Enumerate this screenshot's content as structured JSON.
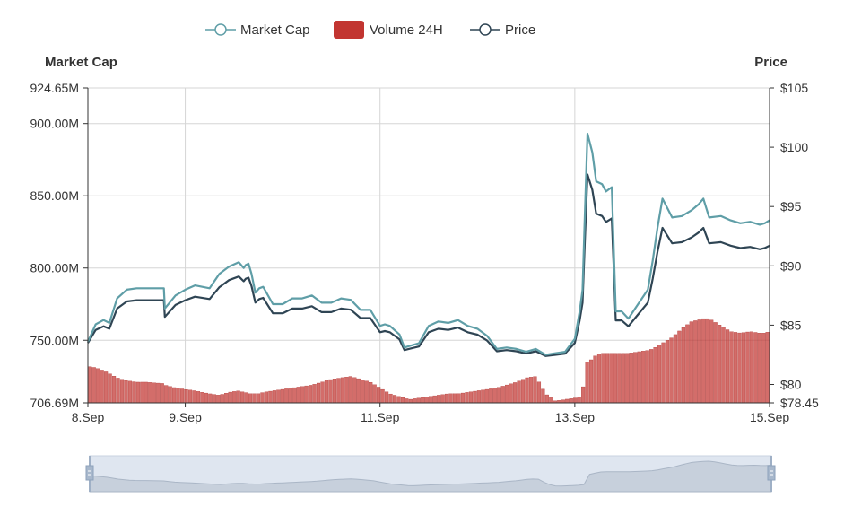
{
  "chart_data": {
    "type": "line",
    "legend": {
      "position": "top-center",
      "items": [
        {
          "label": "Market Cap",
          "icon": "line-circle-icon",
          "color": "#5f9ea7"
        },
        {
          "label": "Volume 24H",
          "icon": "filled-rect-icon",
          "color": "#c23531"
        },
        {
          "label": "Price",
          "icon": "line-circle-icon",
          "color": "#2f4554"
        }
      ]
    },
    "y_left": {
      "name": "Market Cap",
      "min": 706.69,
      "max": 924.65,
      "unit": "M",
      "ticks": [
        "706.69M",
        "750.00M",
        "800.00M",
        "850.00M",
        "900.00M",
        "924.65M"
      ],
      "tick_values": [
        706.69,
        750,
        800,
        850,
        900,
        924.65
      ]
    },
    "y_right": {
      "name": "Price",
      "min": 78.45,
      "max": 105,
      "ticks": [
        "$78.45",
        "$80",
        "$85",
        "$90",
        "$95",
        "$100",
        "$105"
      ],
      "tick_values": [
        78.45,
        80,
        85,
        90,
        95,
        100,
        105
      ]
    },
    "x_axis": {
      "ticks": [
        "8.Sep",
        "9.Sep",
        "11.Sep",
        "13.Sep",
        "15.Sep"
      ],
      "tick_days": [
        0,
        1,
        3,
        5,
        7
      ]
    },
    "grid": true,
    "x_days": [
      0,
      0.08,
      0.16,
      0.22,
      0.3,
      0.4,
      0.5,
      0.6,
      0.78,
      0.79,
      0.9,
      1,
      1.1,
      1.25,
      1.35,
      1.45,
      1.55,
      1.6,
      1.62,
      1.65,
      1.68,
      1.72,
      1.76,
      1.8,
      1.9,
      2,
      2.1,
      2.2,
      2.3,
      2.4,
      2.5,
      2.6,
      2.7,
      2.8,
      2.9,
      3,
      3.05,
      3.1,
      3.2,
      3.25,
      3.3,
      3.4,
      3.5,
      3.6,
      3.7,
      3.8,
      3.9,
      4,
      4.1,
      4.2,
      4.3,
      4.4,
      4.5,
      4.6,
      4.7,
      4.8,
      4.9,
      5,
      5.05,
      5.08,
      5.1,
      5.13,
      5.18,
      5.22,
      5.28,
      5.32,
      5.38,
      5.42,
      5.48,
      5.55,
      5.65,
      5.75,
      5.8,
      5.85,
      5.9,
      6,
      6.1,
      6.2,
      6.27,
      6.32,
      6.38,
      6.5,
      6.6,
      6.7,
      6.8,
      6.9,
      6.95,
      7
    ],
    "series": [
      {
        "name": "Market Cap",
        "color": "#5f9ea7",
        "values": [
          749,
          761,
          764,
          762,
          779,
          785,
          786,
          786,
          786,
          772,
          781,
          785,
          788,
          786,
          796,
          801,
          804,
          800,
          802,
          803,
          796,
          783,
          786,
          787,
          775,
          775,
          779,
          779,
          781,
          776,
          776,
          779,
          778,
          771,
          771,
          760,
          761,
          760,
          754,
          745,
          746,
          748,
          760,
          763,
          762,
          764,
          760,
          758,
          753,
          744,
          745,
          744,
          742,
          744,
          740,
          741,
          742,
          751,
          770,
          785,
          830,
          893,
          880,
          860,
          858,
          853,
          856,
          770,
          770,
          765,
          775,
          785,
          805,
          828,
          848,
          835,
          836,
          840,
          844,
          848,
          835,
          836,
          833,
          831,
          832,
          830,
          831,
          833
        ]
      },
      {
        "name": "Price",
        "color": "#2f4554",
        "values": [
          83.5,
          84.6,
          84.9,
          84.7,
          86.4,
          87.0,
          87.1,
          87.1,
          87.1,
          85.7,
          86.7,
          87.1,
          87.4,
          87.2,
          88.2,
          88.8,
          89.1,
          88.7,
          88.9,
          89.0,
          88.3,
          86.9,
          87.2,
          87.3,
          86.0,
          86.0,
          86.4,
          86.4,
          86.6,
          86.1,
          86.1,
          86.4,
          86.3,
          85.6,
          85.6,
          84.4,
          84.5,
          84.4,
          83.8,
          82.9,
          83.0,
          83.2,
          84.4,
          84.7,
          84.6,
          84.8,
          84.4,
          84.2,
          83.7,
          82.8,
          82.9,
          82.8,
          82.6,
          82.8,
          82.4,
          82.5,
          82.6,
          83.5,
          85.4,
          86.9,
          91.4,
          97.7,
          96.4,
          94.4,
          94.2,
          93.7,
          94.0,
          85.4,
          85.4,
          84.9,
          85.9,
          86.9,
          88.9,
          91.2,
          93.2,
          91.9,
          92.0,
          92.4,
          92.8,
          93.2,
          91.9,
          92.0,
          91.7,
          91.5,
          91.6,
          91.4,
          91.5,
          91.7
        ]
      },
      {
        "name": "Volume 24H",
        "color": "#c23531",
        "scale_note": "relative volume",
        "values": [
          732,
          731,
          729,
          727,
          724,
          722,
          721,
          721,
          720,
          719,
          717,
          716,
          715,
          713,
          712,
          714,
          715,
          714,
          714,
          713,
          713,
          713,
          713,
          714,
          715,
          716,
          717,
          718,
          719,
          721,
          723,
          724,
          725,
          723,
          721,
          717,
          715,
          713,
          711,
          710,
          709,
          710,
          711,
          712,
          713,
          713,
          714,
          715,
          716,
          717,
          719,
          721,
          724,
          725,
          713,
          708,
          709,
          710,
          711,
          712,
          734,
          735,
          737,
          740,
          741,
          741,
          741,
          741,
          741,
          741,
          742,
          743,
          744,
          746,
          748,
          752,
          758,
          763,
          764,
          765,
          765,
          760,
          756,
          755,
          756,
          755,
          755,
          756
        ]
      }
    ]
  },
  "data_zoom": {
    "start": 0,
    "end": 100
  }
}
